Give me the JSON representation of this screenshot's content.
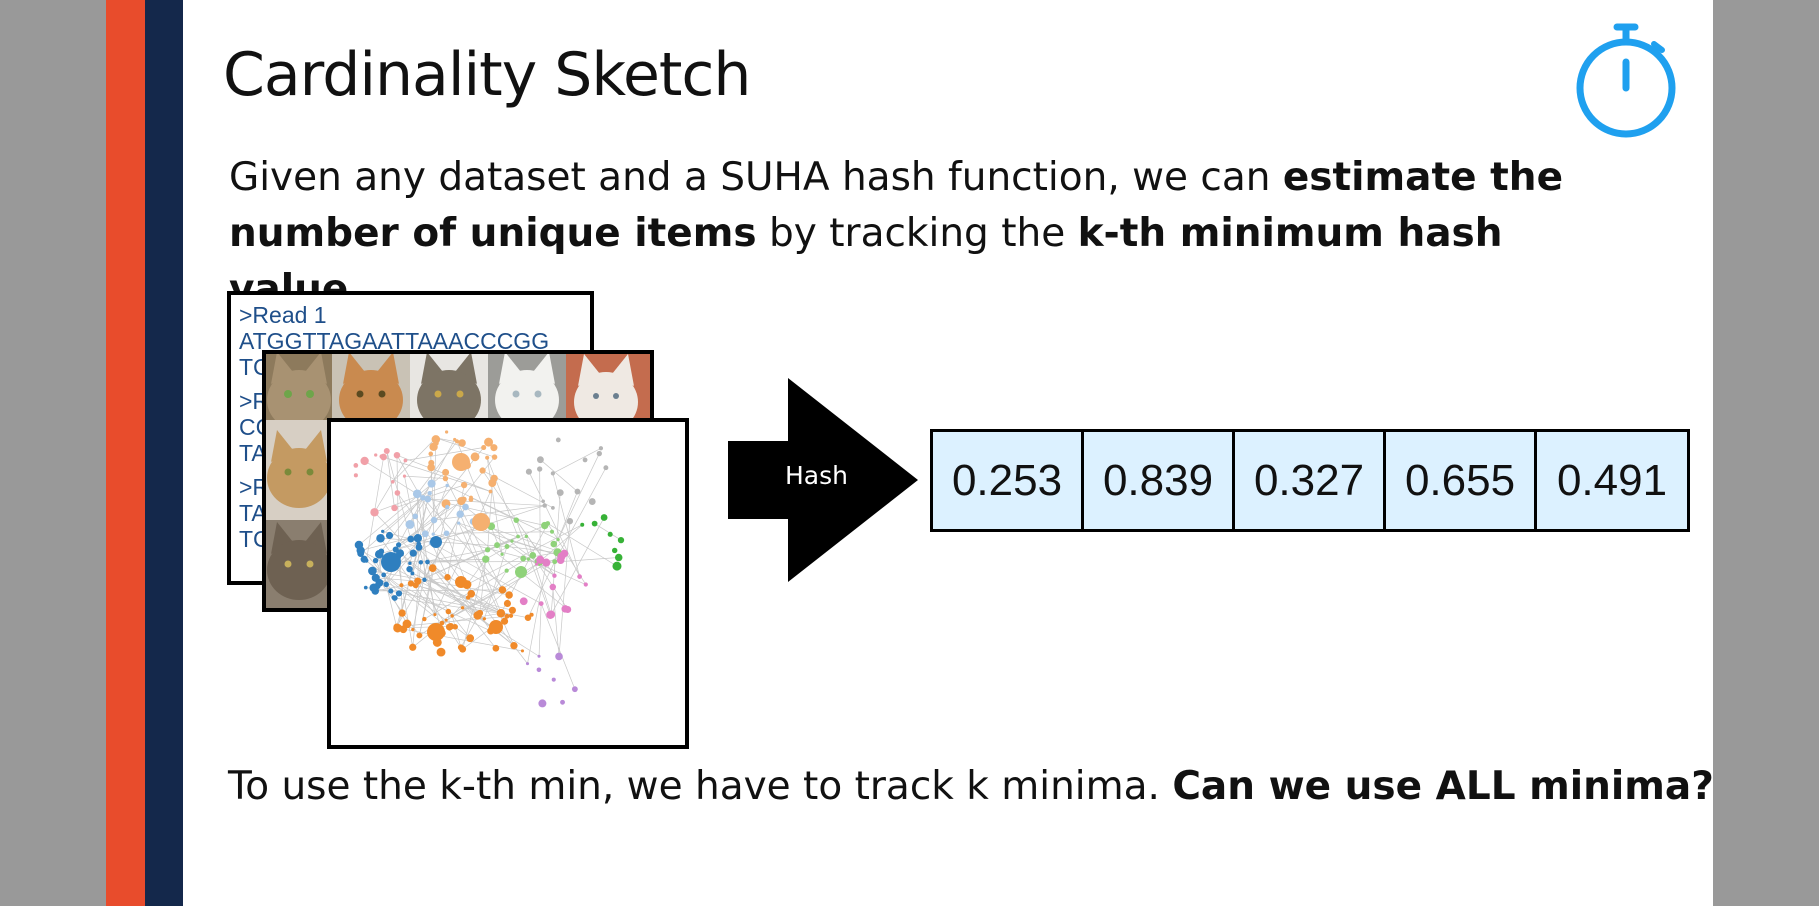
{
  "slide": {
    "title": "Cardinality Sketch",
    "intro": {
      "t1": "Given any dataset and a SUHA hash function, we can ",
      "b1": "estimate the number of unique items",
      "t2": " by tracking the ",
      "b2": "k-th minimum hash value",
      "t3": "."
    },
    "reads_lines": [
      ">Read 1",
      "ATGGTTAGAATTAAACCCGG",
      "TC",
      ">R",
      "CC",
      "TA",
      ">R",
      "TA",
      "TG"
    ],
    "hash_label": "Hash",
    "hash_values": [
      "0.253",
      "0.839",
      "0.327",
      "0.655",
      "0.491"
    ],
    "bottom": {
      "t1": "To use the k-th min, we have to track k minima. ",
      "b1": "Can we use ALL minima?"
    }
  },
  "colors": {
    "accent_orange": "#e84c2c",
    "accent_navy": "#14284b",
    "stopwatch_blue": "#1fa0ef",
    "hash_cell_fill": "#dcf1ff"
  },
  "icons": [
    "stopwatch-icon",
    "hash-arrow-icon"
  ]
}
